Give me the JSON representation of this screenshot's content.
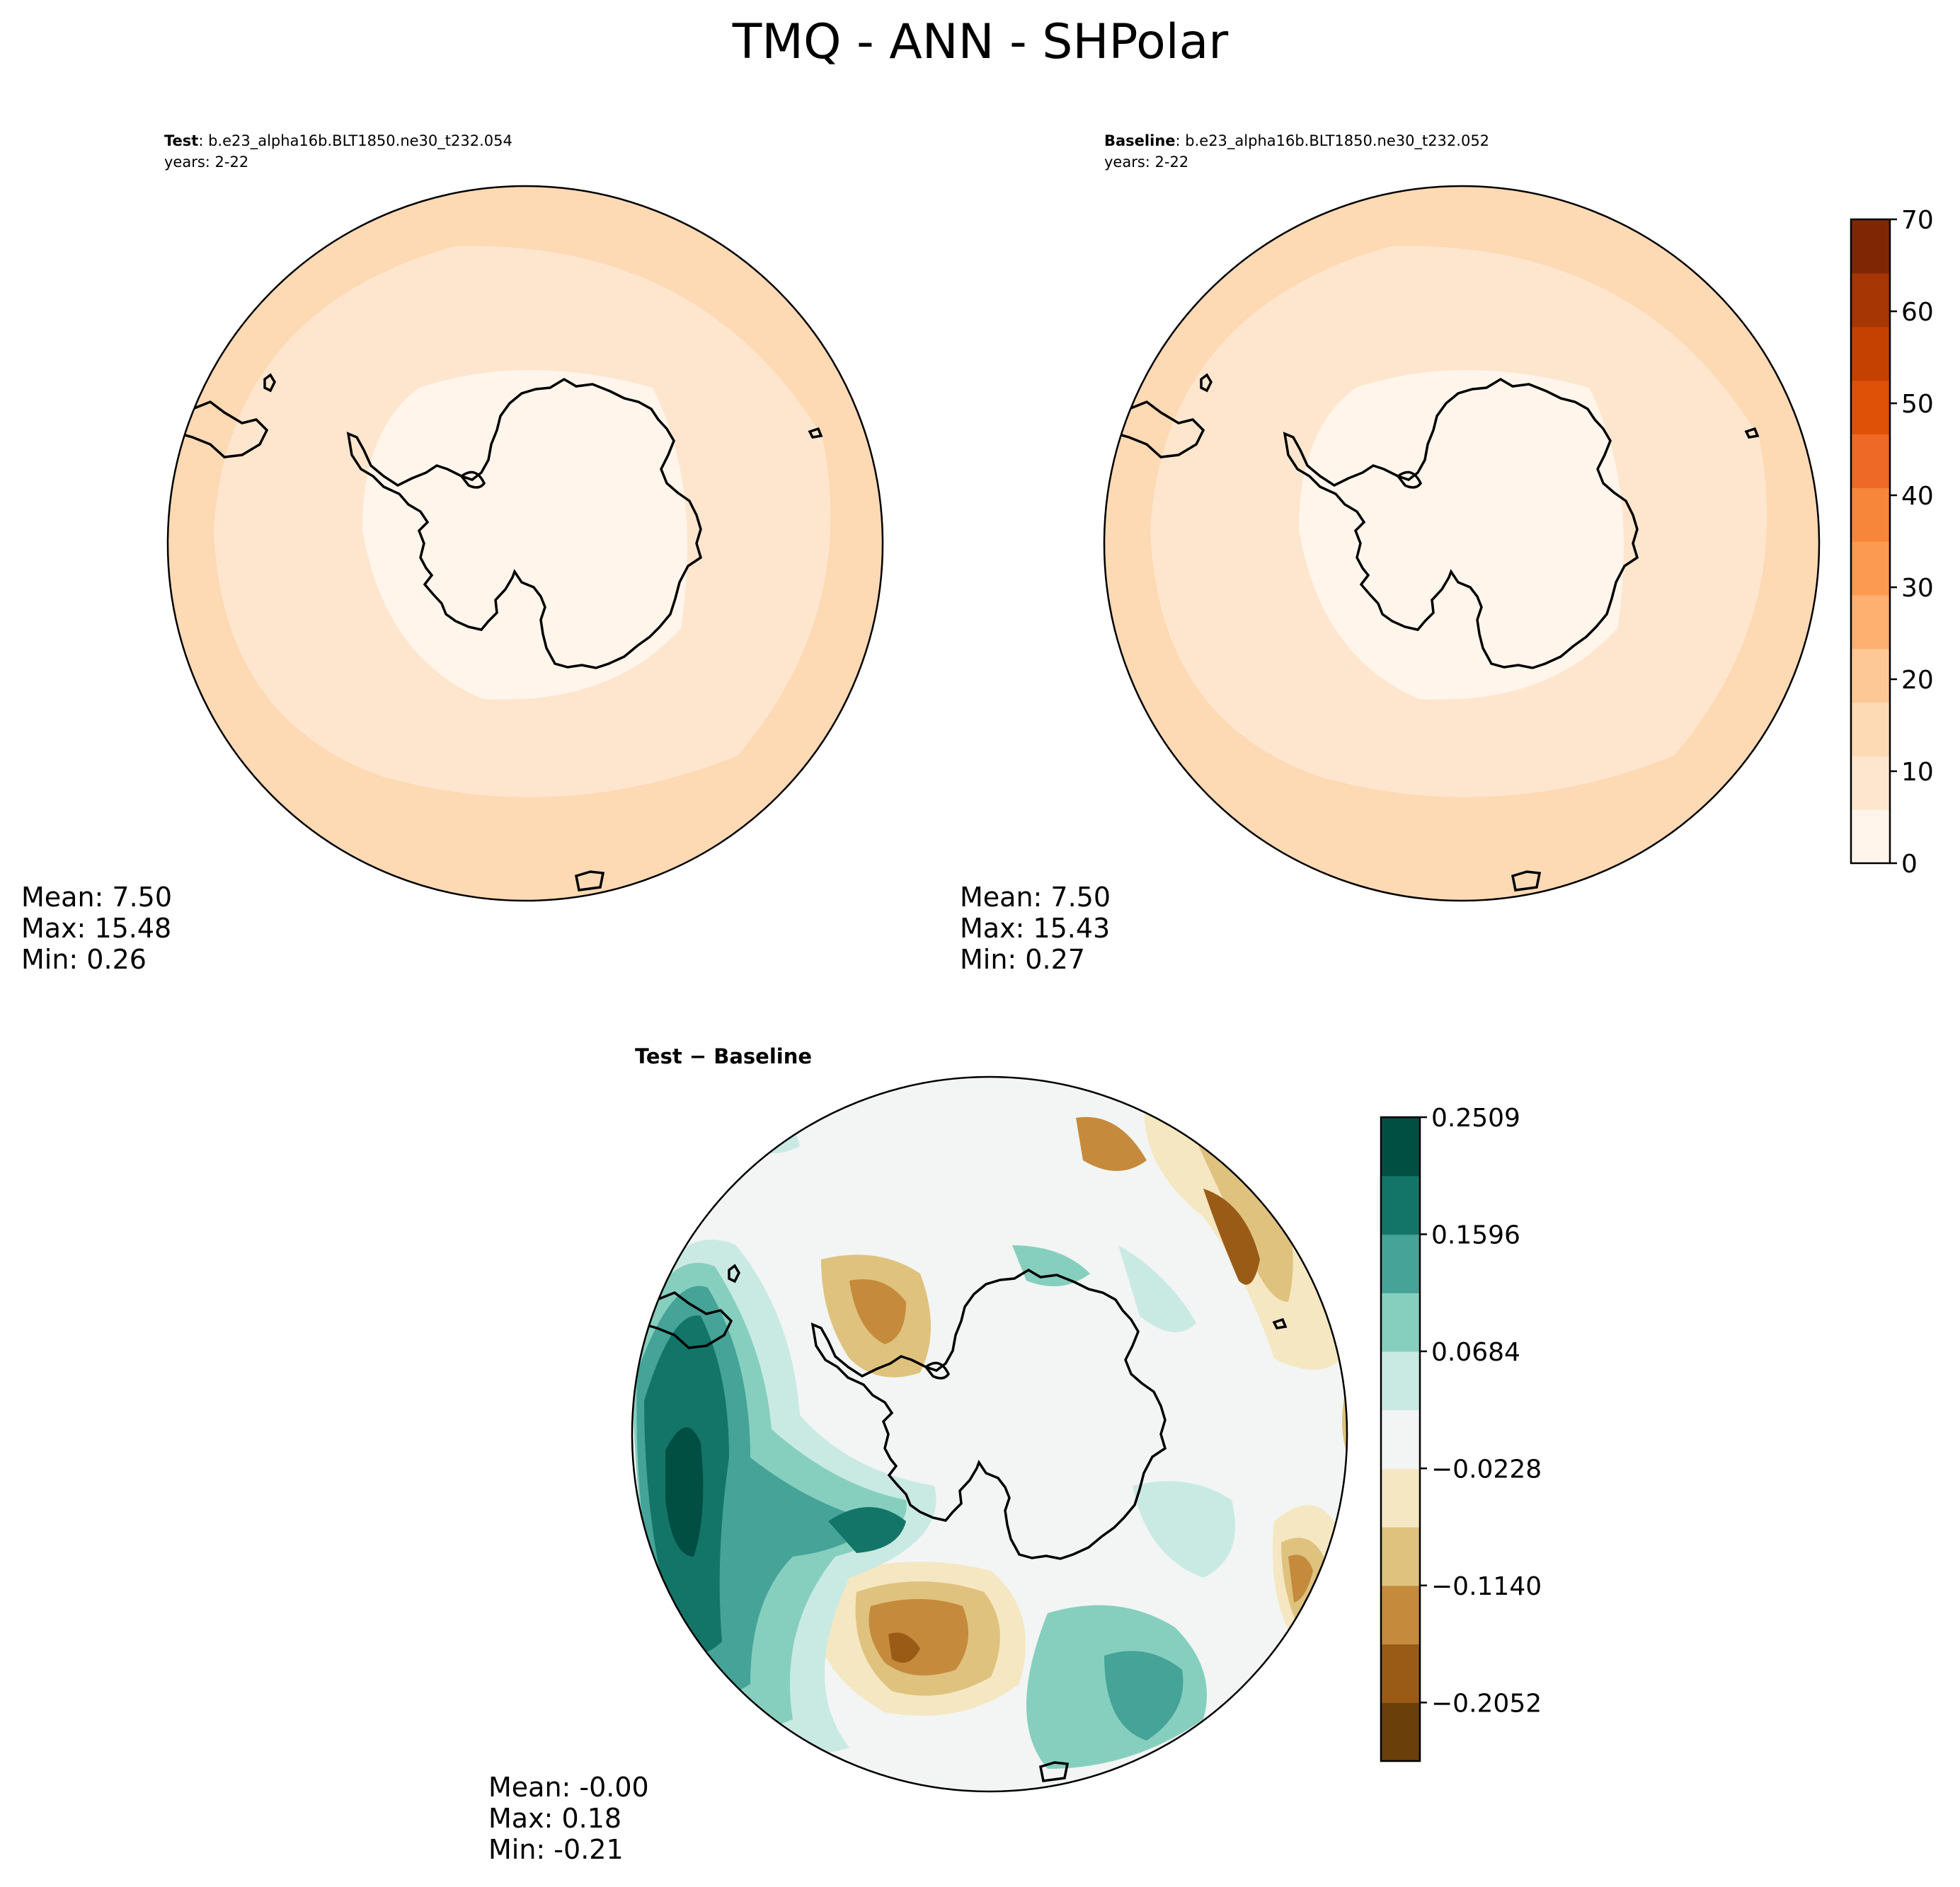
{
  "title": "TMQ - ANN - SHPolar",
  "panels": [
    {
      "id": "test",
      "label_bold": "Test",
      "label_rest": ": b.e23_alpha16b.BLT1850.ne30_t232.054",
      "years": "years: 2-22",
      "stats": {
        "mean": "Mean:  7.50",
        "max": "Max: 15.48",
        "min": "Min:  0.26"
      }
    },
    {
      "id": "baseline",
      "label_bold": "Baseline",
      "label_rest": ": b.e23_alpha16b.BLT1850.ne30_t232.052",
      "years": "years: 2-22",
      "stats": {
        "mean": "Mean:  7.50",
        "max": "Max: 15.43",
        "min": "Min:  0.27"
      }
    },
    {
      "id": "diff",
      "label_bold": "Test − Baseline",
      "stats": {
        "mean": "Mean: -0.00",
        "max": "Max:  0.18",
        "min": "Min: -0.21"
      }
    }
  ],
  "colorbar_top": {
    "colors": [
      "#fff5eb",
      "#fee6ce",
      "#fdd9b4",
      "#fdc895",
      "#fdb06f",
      "#fd9a52",
      "#f7853a",
      "#ed6925",
      "#df5106",
      "#c54102",
      "#a63603",
      "#7f2704"
    ],
    "levels": [
      0,
      5,
      10,
      15,
      20,
      25,
      30,
      35,
      40,
      45,
      50,
      55,
      60,
      65,
      70
    ],
    "ticks": [
      "0",
      "10",
      "20",
      "30",
      "40",
      "50",
      "60",
      "70"
    ]
  },
  "colorbar_diff": {
    "colors": [
      "#6b3f0a",
      "#9a5b16",
      "#c58a3c",
      "#dfc27d",
      "#f5e7c2",
      "#f2f5f3",
      "#c9eae3",
      "#86cfbf",
      "#45a398",
      "#137568",
      "#004f42"
    ],
    "ticks": [
      "−0.2052",
      "−0.1140",
      "−0.0228",
      "0.0684",
      "0.1596",
      "0.2509"
    ]
  }
}
